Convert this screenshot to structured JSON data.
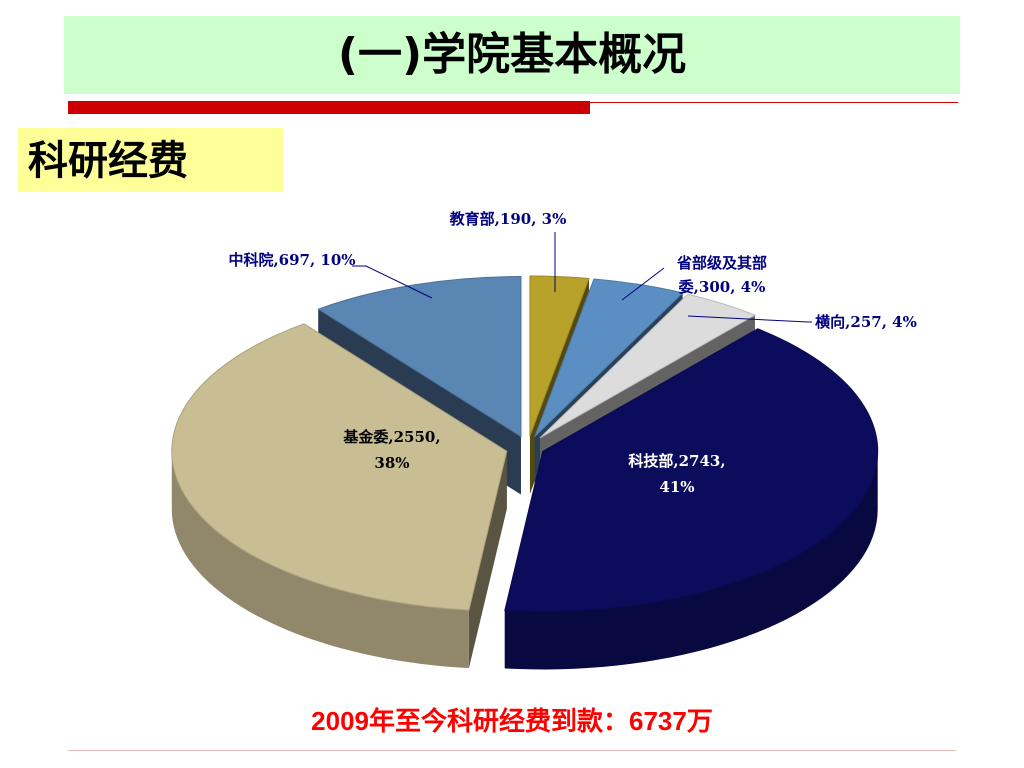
{
  "slide": {
    "title": "(一)学院基本概况",
    "section": "科研经费",
    "footer": "2009年至今科研经费到款：6737万"
  },
  "chart_data": {
    "type": "pie",
    "style": "3d-exploded",
    "title": "",
    "unit": "万",
    "slices": [
      {
        "name": "教育部",
        "value": 190,
        "percent": "3%",
        "label_lines": [
          "教育部,190, 3%"
        ],
        "color": "#b8a229",
        "label_position": "outside"
      },
      {
        "name": "省部级及其部委",
        "value": 300,
        "percent": "4%",
        "label_lines": [
          "省部级及其部",
          "委,300, 4%"
        ],
        "color": "#5b8fc4",
        "label_position": "outside"
      },
      {
        "name": "横向",
        "value": 257,
        "percent": "4%",
        "label_lines": [
          "横向,257, 4%"
        ],
        "color": "#dcdcdc",
        "label_position": "outside"
      },
      {
        "name": "科技部",
        "value": 2743,
        "percent": "41%",
        "label_lines": [
          "科技部,2743,",
          "41%"
        ],
        "color": "#0c0c5c",
        "label_position": "inside"
      },
      {
        "name": "基金委",
        "value": 2550,
        "percent": "38%",
        "label_lines": [
          "基金委,2550,",
          "38%"
        ],
        "color": "#c9bd94",
        "label_position": "inside"
      },
      {
        "name": "中科院",
        "value": 697,
        "percent": "10%",
        "label_lines": [
          "中科院,697, 10%"
        ],
        "color": "#5a86b3",
        "label_position": "outside"
      }
    ],
    "total": 6737
  }
}
